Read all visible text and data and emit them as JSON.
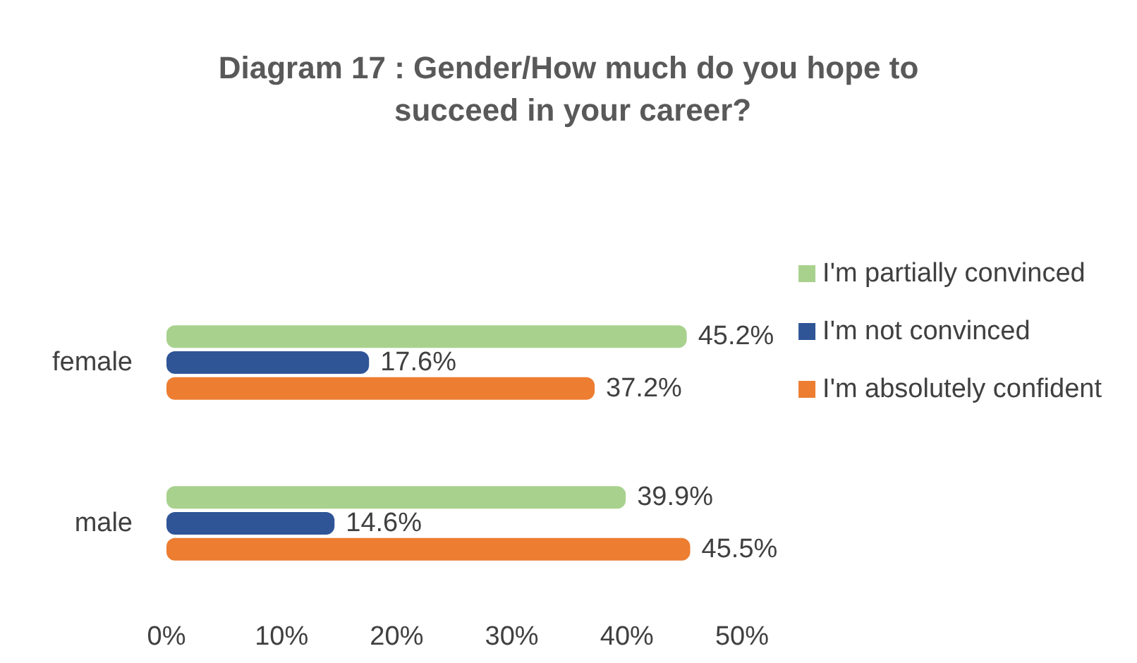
{
  "chart_data": {
    "type": "bar",
    "orientation": "horizontal",
    "title": "Diagram 17 : Gender/How much do you hope to succeed in your career?",
    "categories": [
      "female",
      "male"
    ],
    "series": [
      {
        "name": "I'm partially convinced",
        "color": "#a9d18e",
        "values": [
          45.2,
          39.9
        ],
        "value_labels": [
          "45.2%",
          "39.9%"
        ]
      },
      {
        "name": "I'm not convinced",
        "color": "#2f5597",
        "values": [
          17.6,
          14.6
        ],
        "value_labels": [
          "17.6%",
          "14.6%"
        ]
      },
      {
        "name": "I'm absolutely confident",
        "color": "#ed7d31",
        "values": [
          37.2,
          45.5
        ],
        "value_labels": [
          "37.2%",
          "45.5%"
        ]
      }
    ],
    "xlim": [
      0,
      50
    ],
    "xticks": [
      {
        "value": 0,
        "label": "0%"
      },
      {
        "value": 10,
        "label": "10%"
      },
      {
        "value": 20,
        "label": "20%"
      },
      {
        "value": 30,
        "label": "30%"
      },
      {
        "value": 40,
        "label": "40%"
      },
      {
        "value": 50,
        "label": "50%"
      }
    ],
    "grid": false,
    "legend": "right"
  }
}
